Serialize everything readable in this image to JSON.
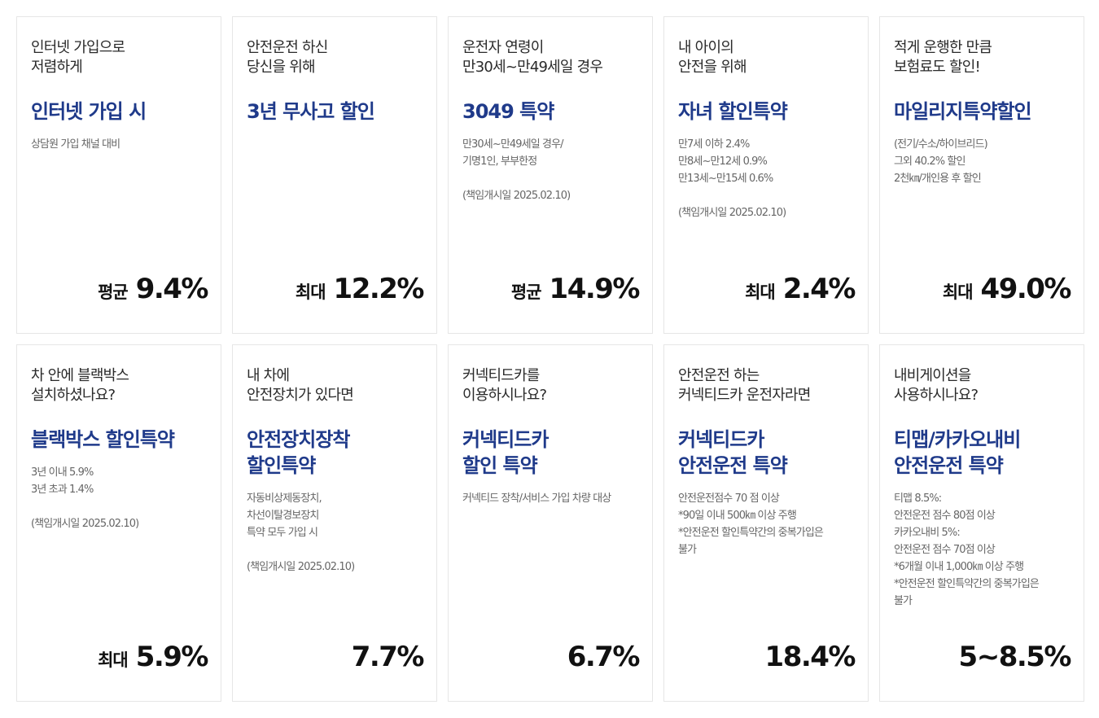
{
  "cards": [
    {
      "lead": "인터넷 가입으로\n저렴하게",
      "title": "인터넷 가입 시",
      "desc": "상담원 가입 채널 대비",
      "prefix": "평균",
      "value": "9.4%"
    },
    {
      "lead": "안전운전 하신\n당신을 위해",
      "title": "3년 무사고 할인",
      "desc": "",
      "prefix": "최대",
      "value": "12.2%"
    },
    {
      "lead": "운전자 연령이\n만30세~만49세일 경우",
      "title": "3049 특약",
      "desc": "만30세~만49세일 경우/\n기명1인, 부부한정\n\n(책임개시일 2025.02.10)",
      "prefix": "평균",
      "value": "14.9%"
    },
    {
      "lead": "내 아이의\n안전을 위해",
      "title": "자녀 할인특약",
      "desc": "만7세 이하 2.4%\n만8세~만12세 0.9%\n만13세~만15세 0.6%\n\n(책임개시일 2025.02.10)",
      "prefix": "최대",
      "value": "2.4%"
    },
    {
      "lead": "적게 운행한 만큼\n보험료도 할인!",
      "title": "마일리지특약할인",
      "desc": "(전기/수소/하이브리드)\n그외 40.2% 할인\n2천㎞/개인용 후 할인",
      "prefix": "최대",
      "value": "49.0%"
    },
    {
      "lead": "차 안에 블랙박스\n설치하셨나요?",
      "title": "블랙박스 할인특약",
      "desc": "3년 이내 5.9%\n3년 초과 1.4%\n\n(책임개시일 2025.02.10)",
      "prefix": "최대",
      "value": "5.9%"
    },
    {
      "lead": "내 차에\n안전장치가 있다면",
      "title": "안전장치장착\n할인특약",
      "desc": "자동비상제동장치,\n차선이탈경보장치\n특약 모두 가입 시\n\n(책임개시일 2025.02.10)",
      "prefix": "",
      "value": "7.7%"
    },
    {
      "lead": "커넥티드카를\n이용하시나요?",
      "title": "커넥티드카\n할인 특약",
      "desc": "커넥티드 장착/서비스 가입 차량 대상",
      "prefix": "",
      "value": "6.7%"
    },
    {
      "lead": "안전운전 하는\n커넥티드카 운전자라면",
      "title": "커넥티드카\n안전운전 특약",
      "desc": "안전운전점수 70 점 이상\n*90일 이내 500㎞ 이상 주행\n*안전운전 할인특약간의 중복가입은\n불가",
      "prefix": "",
      "value": "18.4%"
    },
    {
      "lead": "내비게이션을\n사용하시나요?",
      "title": "티맵/카카오내비\n안전운전 특약",
      "desc": "티맵 8.5%:\n안전운전 점수 80점 이상\n카카오내비 5%:\n안전운전 점수 70점 이상\n*6개월 이내 1,000㎞ 이상 주행\n*안전운전 할인특약간의 중복가입은\n불가",
      "prefix": "",
      "value": "5~8.5%"
    }
  ]
}
